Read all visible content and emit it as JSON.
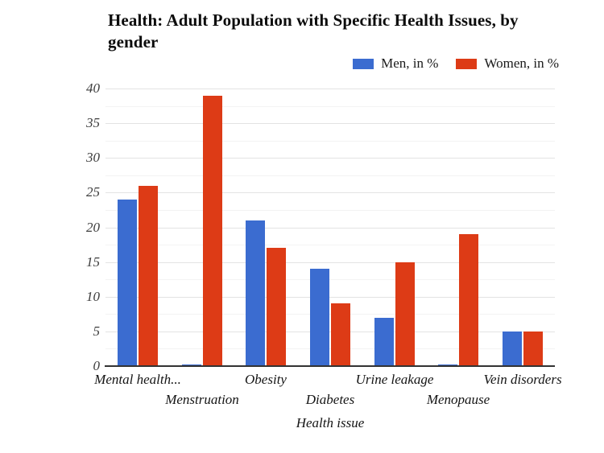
{
  "title": {
    "line1": "Health: Adult Population with Specific Health Issues, by",
    "line2": "gender"
  },
  "legend": {
    "items": [
      {
        "label": "Men, in %",
        "color": "#3b6cd0"
      },
      {
        "label": "Women, in %",
        "color": "#dd3b16"
      }
    ]
  },
  "chart_data": {
    "type": "bar",
    "title": "Health: Adult Population with Specific Health Issues, by gender",
    "categories": [
      "Mental health...",
      "Menstruation",
      "Obesity",
      "Diabetes",
      "Urine leakage",
      "Menopause",
      "Vein disorders"
    ],
    "series": [
      {
        "name": "Men, in %",
        "color": "#3b6cd0",
        "values": [
          24,
          0,
          21,
          14,
          7,
          0,
          5
        ]
      },
      {
        "name": "Women, in %",
        "color": "#dd3b16",
        "values": [
          26,
          39,
          17,
          9,
          15,
          19,
          5
        ]
      }
    ],
    "xlabel": "Health issue",
    "ylabel": "",
    "ylim": [
      0,
      40
    ],
    "yticks": [
      0,
      5,
      10,
      15,
      20,
      25,
      30,
      35,
      40
    ],
    "minor_tick_step": 2.5,
    "grid": true,
    "legend_position": "top-right"
  },
  "colors": {
    "background": "#ffffff",
    "grid_major": "#e3e3e3",
    "grid_minor": "#f3f3f3",
    "axis_line": "#333333",
    "tick_text": "#3d3d3d",
    "category_text": "#141414",
    "title_text": "#0c0c0c"
  }
}
